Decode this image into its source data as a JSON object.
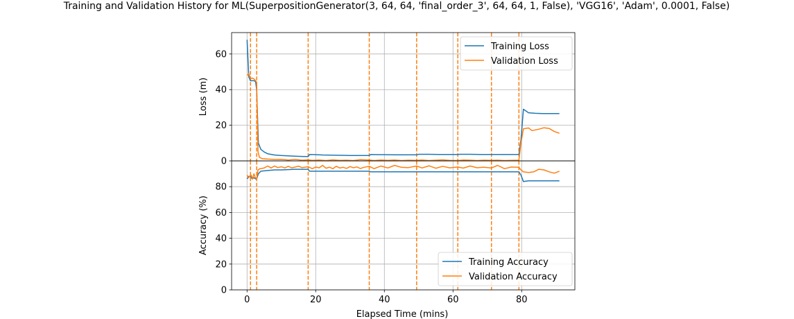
{
  "chart_data": {
    "title": "Training and Validation History for ML(SuperpositionGenerator(3, 64, 64, 'final_order_3', 64, 64, 1, False), 'VGG16', 'Adam', 0.0001, False)",
    "xlabel": "Elapsed Time (mins)",
    "xlim": [
      -4.5,
      95.5
    ],
    "x_ticks": [
      0,
      20,
      40,
      60,
      80
    ],
    "x_tick_labels": [
      "0",
      "20",
      "40",
      "60",
      "80"
    ],
    "colors": {
      "training": "#1f77b4",
      "validation": "#ff7f0e",
      "grid": "#b0b0b0"
    },
    "vlines": [
      1.0,
      2.8,
      17.8,
      35.6,
      49.4,
      61.4,
      71.2,
      79.2
    ],
    "panels": [
      {
        "type": "line",
        "ylabel": "Loss (m)",
        "ylim": [
          0,
          72
        ],
        "y_ticks": [
          0,
          20,
          40,
          60
        ],
        "y_tick_labels": [
          "0",
          "20",
          "40",
          "60"
        ],
        "legend_position": "upper-right",
        "series": [
          {
            "name": "Training Loss",
            "color": "#1f77b4",
            "x": [
              0,
              0.5,
              1.0,
              1.5,
              2.0,
              2.5,
              2.8,
              3.3,
              4,
              5,
              6,
              8,
              10,
              12,
              14,
              16,
              17.8,
              18.2,
              20,
              22,
              25,
              28,
              30,
              33,
              35.6,
              36,
              38,
              40,
              43,
              46,
              49.4,
              50,
              53,
              56,
              59,
              61.4,
              62,
              65,
              68,
              71.2,
              72,
              75,
              78,
              79.2,
              79.8,
              80.5,
              82,
              84,
              86,
              88,
              91
            ],
            "y": [
              68,
              47,
              45,
              45,
              45,
              44.5,
              40,
              10,
              6.5,
              5,
              4,
              3.3,
              3,
              2.8,
              2.6,
              2.5,
              2.4,
              3.6,
              3.5,
              3.3,
              3.2,
              3.1,
              3.0,
              3.0,
              3.0,
              3.6,
              3.5,
              3.5,
              3.4,
              3.4,
              3.4,
              3.7,
              3.7,
              3.6,
              3.6,
              3.6,
              3.7,
              3.7,
              3.6,
              3.6,
              3.6,
              3.6,
              3.6,
              3.6,
              12,
              29,
              27,
              26.7,
              26.6,
              26.6,
              26.6
            ]
          },
          {
            "name": "Validation Loss",
            "color": "#ff7f0e",
            "x": [
              0,
              0.5,
              1.0,
              1.5,
              2.0,
              2.5,
              2.8,
              3.2,
              3.6,
              4.5,
              6,
              8,
              10,
              12,
              14,
              16,
              17.8,
              19,
              21,
              23,
              25,
              27,
              29,
              31,
              33,
              35.6,
              37,
              39,
              41,
              43,
              45,
              47,
              49.4,
              51,
              53,
              55,
              57,
              59,
              61.4,
              63,
              65,
              67,
              69,
              71.2,
              73,
              75,
              77,
              79.2,
              79.8,
              80.5,
              82,
              83,
              85,
              86.5,
              88,
              89.5,
              91
            ],
            "y": [
              48,
              49,
              46,
              46.5,
              46,
              45,
              44,
              5,
              2,
              1.2,
              1.0,
              0.8,
              0.9,
              0.5,
              0.8,
              0.4,
              0.6,
              0.3,
              0.5,
              0.2,
              0.6,
              0.3,
              0.4,
              0.2,
              0.7,
              0.5,
              0.2,
              0.5,
              0.3,
              0.5,
              0.2,
              0.4,
              0.3,
              0.5,
              0.2,
              0.4,
              0.6,
              0.3,
              0.2,
              0.5,
              0.4,
              0.2,
              0.4,
              0.3,
              0.4,
              0.2,
              0.3,
              0.4,
              10,
              18,
              18.5,
              17,
              17.8,
              18.6,
              18.2,
              16.5,
              15.5
            ]
          }
        ]
      },
      {
        "type": "line",
        "ylabel": "Accuracy (%)",
        "ylim": [
          0,
          100
        ],
        "y_ticks": [
          0,
          20,
          40,
          60,
          80
        ],
        "y_tick_labels": [
          "0",
          "20",
          "40",
          "60",
          "80"
        ],
        "legend_position": "lower-right",
        "series": [
          {
            "name": "Training Accuracy",
            "color": "#1f77b4",
            "x": [
              0,
              0.5,
              1.0,
              1.5,
              2.0,
              2.5,
              2.8,
              3.3,
              4,
              6,
              8,
              10,
              14,
              17.8,
              18.2,
              22,
              26,
              30,
              35.6,
              36,
              40,
              45,
              49.4,
              50,
              55,
              61.4,
              62,
              67,
              71.2,
              72,
              76,
              79.2,
              79.8,
              80.5,
              82,
              85,
              88,
              91
            ],
            "y": [
              86,
              88,
              88,
              86,
              87,
              86,
              86,
              90,
              92,
              92.5,
              93,
              93,
              93.5,
              93.5,
              92,
              92,
              92,
              92,
              92,
              91.5,
              91.5,
              91.5,
              91.5,
              91.5,
              91.5,
              91.5,
              91.5,
              91.5,
              91.5,
              91.5,
              91.5,
              91.5,
              89,
              84,
              84.5,
              84.5,
              84.5,
              84.5
            ]
          },
          {
            "name": "Validation Accuracy",
            "color": "#ff7f0e",
            "x": [
              0,
              0.4,
              0.8,
              1.2,
              1.6,
              2.0,
              2.4,
              2.8,
              3.2,
              3.8,
              5,
              6,
              7,
              8,
              9,
              10,
              11,
              12,
              13,
              14,
              15,
              16,
              17.8,
              19,
              20,
              21,
              22,
              23,
              24,
              25,
              26,
              27,
              28,
              29,
              30,
              31,
              32,
              33,
              34,
              35.6,
              37,
              39,
              41,
              43,
              45,
              47,
              49.4,
              51,
              53,
              55,
              57,
              59,
              61.4,
              63,
              65,
              67,
              69,
              71.2,
              73,
              75,
              77,
              79.2,
              79.8,
              80.5,
              82,
              83.5,
              85,
              86.5,
              88,
              89.5,
              91
            ],
            "y": [
              89,
              87,
              88,
              89,
              86,
              90,
              87,
              86,
              93,
              94,
              94.5,
              96,
              94.5,
              96,
              94.8,
              95.5,
              94.5,
              95.8,
              94.6,
              95.2,
              95.9,
              94.8,
              95.5,
              94,
              95.2,
              94.6,
              96.5,
              94.3,
              95.1,
              93.9,
              95.8,
              94.5,
              95,
              94.2,
              95.6,
              94.7,
              95.3,
              94.1,
              95,
              95.8,
              94,
              96,
              94.5,
              96.5,
              95,
              94.8,
              96,
              94.5,
              96.2,
              94.3,
              95.8,
              94.6,
              95.2,
              94.4,
              96,
              94.7,
              95.1,
              94.5,
              96.5,
              94,
              95.2,
              95,
              93,
              91.5,
              91,
              91.5,
              93.5,
              93,
              91.5,
              90.5,
              92
            ]
          }
        ]
      }
    ]
  }
}
